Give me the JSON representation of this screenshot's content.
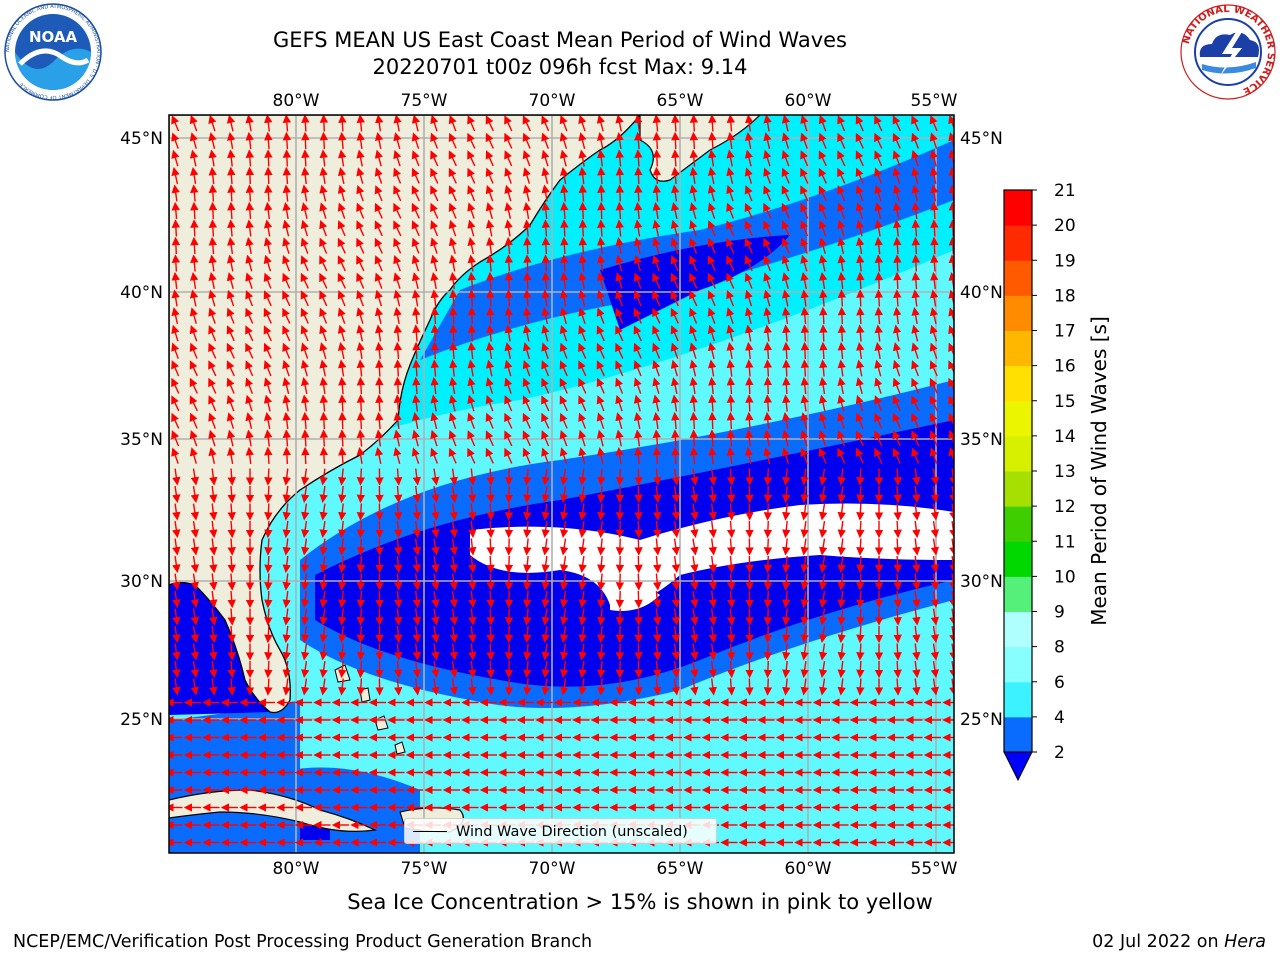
{
  "header": {
    "title_line1": "GEFS MEAN US East Coast Mean Period of Wind Waves",
    "title_line2": "20220701 t00z 096h fcst   Max: 9.14",
    "noaa_logo_text": "NOAA",
    "noaa_ring_text": "NATIONAL OCEANIC AND ATMOSPHERIC ADMINISTRATION · U.S. DEPARTMENT OF COMMERCE",
    "nws_ring_text": "NATIONAL WEATHER SERVICE"
  },
  "map": {
    "lon_labels": [
      "80°W",
      "75°W",
      "70°W",
      "65°W",
      "60°W",
      "55°W"
    ],
    "lat_labels": [
      "45°N",
      "40°N",
      "35°N",
      "30°N",
      "25°N"
    ],
    "legend_label": "Wind Wave Direction (unscaled)"
  },
  "colorbar": {
    "label": "Mean Period of Wind Waves [s]",
    "ticks": [
      "2",
      "4",
      "6",
      "8",
      "9",
      "10",
      "11",
      "12",
      "13",
      "14",
      "15",
      "16",
      "17",
      "18",
      "19",
      "20",
      "21"
    ],
    "colors": [
      "#0a6cff",
      "#00e1ff",
      "#3df2ff",
      "#88ffff",
      "#b0ffff",
      "#55f07a",
      "#00d800",
      "#3fcf00",
      "#a6e000",
      "#d6f000",
      "#ecf500",
      "#ffe000",
      "#ffb700",
      "#ff8c00",
      "#ff5a00",
      "#ff2a00",
      "#ff0000"
    ],
    "under_color": "#0000ff"
  },
  "colors": {
    "land": "#efeddc",
    "ocean_dark": "#0000ee",
    "ocean_mid": "#0a6cff",
    "ocean_cyan": "#00f0ff",
    "ocean_light": "#5ff9ff",
    "arrow": "#ff0000",
    "grid": "#b0b0b0"
  },
  "footer": {
    "left": "NCEP/EMC/Verification Post Processing Product Generation Branch",
    "right_date": "02 Jul 2022 on ",
    "right_host": "Hera",
    "ice_note": "Sea Ice Concentration > 15% is shown in pink to yellow"
  }
}
